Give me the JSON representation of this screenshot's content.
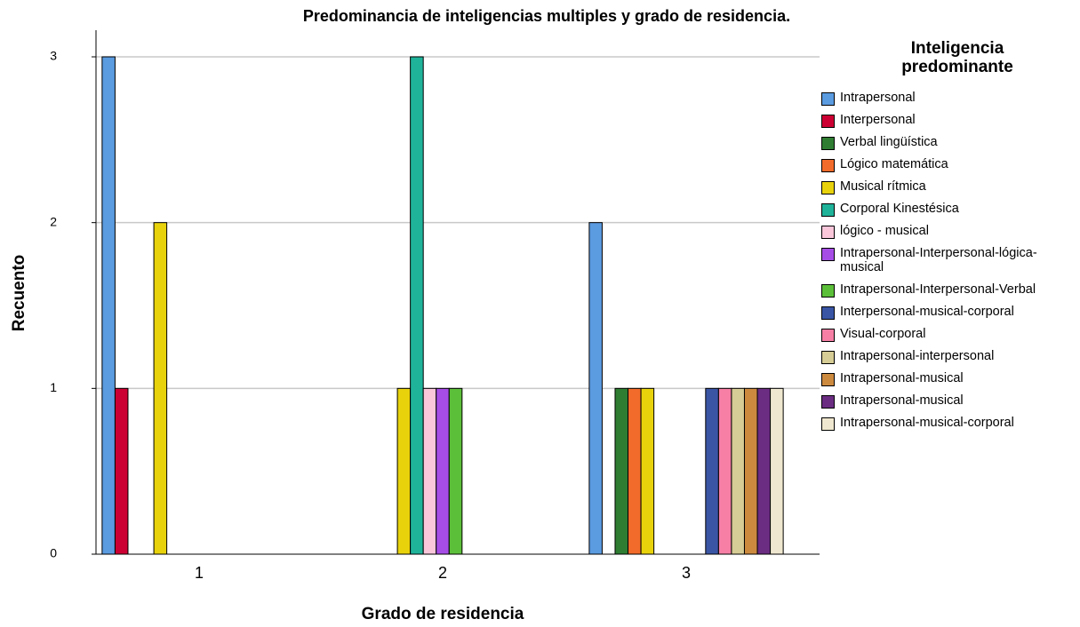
{
  "chart_data": {
    "type": "bar",
    "title": "Predominancia de inteligencias multiples y grado de residencia.",
    "xlabel": "Grado de residencia",
    "ylabel": "Recuento",
    "legend_title": "Inteligencia predominante",
    "categories": [
      "1",
      "2",
      "3"
    ],
    "ylim": [
      0,
      3
    ],
    "yticks": [
      0,
      1,
      2,
      3
    ],
    "grid": true,
    "legend": "right",
    "series": [
      {
        "name": "Intrapersonal",
        "color": "#5b9be0",
        "values": [
          3,
          0,
          2
        ]
      },
      {
        "name": "Interpersonal",
        "color": "#cc0033",
        "values": [
          1,
          0,
          0
        ]
      },
      {
        "name": "Verbal lingüística",
        "color": "#2e7d32",
        "values": [
          0,
          0,
          1
        ]
      },
      {
        "name": "Lógico matemática",
        "color": "#f26b2a",
        "values": [
          0,
          0,
          1
        ]
      },
      {
        "name": "Musical rítmica",
        "color": "#e8d20c",
        "values": [
          2,
          1,
          1
        ]
      },
      {
        "name": "Corporal Kinestésica",
        "color": "#1fb39a",
        "values": [
          0,
          3,
          0
        ]
      },
      {
        "name": "lógico - musical",
        "color": "#f9c6da",
        "values": [
          0,
          1,
          0
        ]
      },
      {
        "name": "Intrapersonal-Interpersonal-lógica-musical",
        "color": "#a64de6",
        "values": [
          0,
          1,
          0
        ]
      },
      {
        "name": "Intrapersonal-Interpersonal-Verbal",
        "color": "#5cbf3a",
        "values": [
          0,
          1,
          0
        ]
      },
      {
        "name": "Interpersonal-musical-corporal",
        "color": "#3a55a4",
        "values": [
          0,
          0,
          1
        ]
      },
      {
        "name": "Visual-corporal",
        "color": "#f77fa6",
        "values": [
          0,
          0,
          1
        ]
      },
      {
        "name": "Intrapersonal-interpersonal",
        "color": "#d6cc95",
        "values": [
          0,
          0,
          1
        ]
      },
      {
        "name": "Intrapersonal-musical",
        "color": "#cc8a3f",
        "values": [
          0,
          0,
          1
        ]
      },
      {
        "name": "Intrapersonal-musical",
        "color": "#6b2d82",
        "values": [
          0,
          0,
          1
        ]
      },
      {
        "name": "Intrapersonal-musical-corporal",
        "color": "#efe7cf",
        "values": [
          0,
          0,
          1
        ]
      }
    ]
  }
}
